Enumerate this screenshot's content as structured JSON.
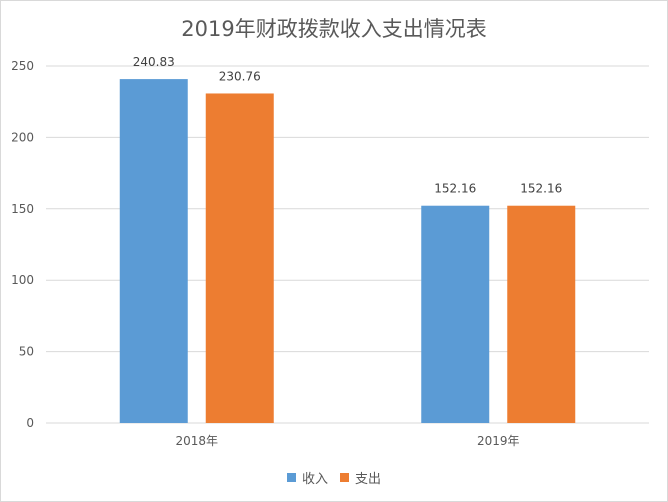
{
  "chart_data": {
    "type": "bar",
    "title": "2019年财政拨款收入支出情况表",
    "categories": [
      "2018年",
      "2019年"
    ],
    "series": [
      {
        "name": "收入",
        "values": [
          240.83,
          152.16
        ],
        "labels": [
          "240.83",
          "152.16"
        ],
        "color": "#5b9bd5"
      },
      {
        "name": "支出",
        "values": [
          230.76,
          152.16
        ],
        "labels": [
          "230.76",
          "152.16"
        ],
        "color": "#ed7d31"
      }
    ],
    "ylim": [
      0,
      250
    ],
    "yticks": [
      "0",
      "50",
      "100",
      "150",
      "200",
      "250"
    ],
    "xlabel": "",
    "ylabel": "",
    "grid": true,
    "legend_position": "bottom"
  }
}
